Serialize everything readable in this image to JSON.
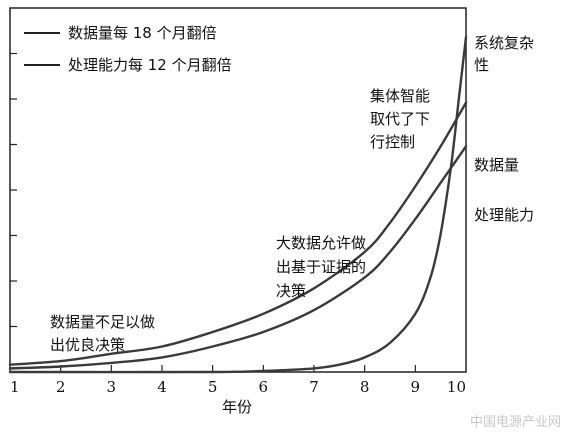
{
  "chart_data": {
    "type": "line",
    "title": "",
    "xlabel": "年份",
    "ylabel": "",
    "xlim": [
      1,
      10
    ],
    "ylim": [
      0,
      1
    ],
    "x_ticks": [
      "1",
      "2",
      "3",
      "4",
      "5",
      "6",
      "7",
      "8",
      "9",
      "10"
    ],
    "grid": false,
    "legend": {
      "placement": "top-left",
      "entries": [
        "数据量每 18 个月翻倍",
        "处理能力每 12 个月翻倍"
      ]
    },
    "series": [
      {
        "name": "系统复杂性",
        "x": [
          1,
          5,
          6,
          7,
          7.5,
          8,
          8.5,
          9,
          9.3,
          9.5,
          9.7,
          9.85,
          10
        ],
        "y": [
          0.0,
          0.0,
          0.003,
          0.01,
          0.02,
          0.04,
          0.08,
          0.16,
          0.26,
          0.38,
          0.56,
          0.74,
          0.92
        ]
      },
      {
        "name": "数据量",
        "x": [
          1,
          2,
          3,
          4,
          5,
          6,
          7,
          8,
          8.5,
          9,
          9.5,
          10
        ],
        "y": [
          0.02,
          0.03,
          0.05,
          0.07,
          0.11,
          0.16,
          0.23,
          0.33,
          0.41,
          0.51,
          0.62,
          0.74
        ]
      },
      {
        "name": "处理能力",
        "x": [
          1,
          2,
          3,
          4,
          5,
          6,
          7,
          8,
          8.5,
          9,
          9.5,
          10
        ],
        "y": [
          0.01,
          0.015,
          0.025,
          0.04,
          0.07,
          0.11,
          0.17,
          0.26,
          0.33,
          0.42,
          0.52,
          0.62
        ]
      }
    ],
    "annotations": [
      "数据量不足以做",
      "出优良决策",
      "大数据允许做",
      "出基于证据的",
      "决策",
      "集体智能",
      "取代了下",
      "行控制"
    ],
    "end_labels": [
      "系统复杂",
      "性",
      "数据量",
      "处理能力"
    ]
  },
  "watermark": "中国电源产业网",
  "colors": {
    "line": "#3a3a3a",
    "axis": "#222222"
  }
}
